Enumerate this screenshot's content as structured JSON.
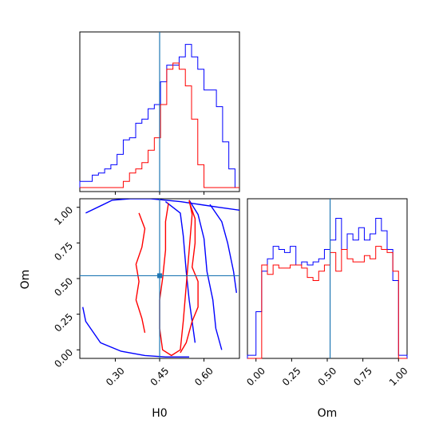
{
  "chart_data": {
    "type": "corner",
    "parameters": [
      "H0",
      "Om"
    ],
    "truth": {
      "H0": 0.45,
      "Om": 0.52
    },
    "colors": {
      "chain_a": "#0000ff",
      "chain_b": "#ff0000",
      "truth": "#1f77b4"
    },
    "hist_H0": {
      "xlim": [
        0.18,
        0.72
      ],
      "edges": [
        0.18,
        0.201,
        0.222,
        0.243,
        0.264,
        0.285,
        0.306,
        0.327,
        0.348,
        0.369,
        0.39,
        0.411,
        0.432,
        0.453,
        0.474,
        0.495,
        0.516,
        0.537,
        0.558,
        0.579,
        0.6,
        0.621,
        0.642,
        0.663,
        0.684,
        0.705,
        0.72
      ],
      "series": [
        {
          "name": "",
          "color": "#0000ff",
          "values": [
            3,
            3,
            6,
            7,
            9,
            11,
            16,
            23,
            24,
            31,
            33,
            38,
            40,
            51,
            59,
            59,
            63,
            69,
            63,
            57,
            47,
            47,
            39,
            22,
            9,
            0
          ]
        },
        {
          "name": "",
          "color": "#ff0000",
          "values": [
            0,
            0,
            0,
            0,
            0,
            0,
            0,
            3,
            7,
            9,
            12,
            18,
            24,
            40,
            57,
            60,
            57,
            49,
            33,
            11,
            0,
            0,
            0,
            0,
            0,
            0
          ]
        }
      ]
    },
    "hist_Om": {
      "xlim": [
        -0.06,
        1.06
      ],
      "edges": [
        -0.06,
        0.0,
        0.04,
        0.08,
        0.12,
        0.16,
        0.2,
        0.24,
        0.28,
        0.32,
        0.36,
        0.4,
        0.44,
        0.48,
        0.52,
        0.56,
        0.6,
        0.64,
        0.68,
        0.72,
        0.76,
        0.8,
        0.84,
        0.88,
        0.92,
        0.96,
        1.0,
        1.06
      ],
      "series": [
        {
          "name": "",
          "color": "#0000ff",
          "values": [
            1,
            15,
            28,
            32,
            36,
            35,
            34,
            36,
            30,
            31,
            30,
            31,
            32,
            35,
            38,
            45,
            35,
            40,
            38,
            42,
            38,
            40,
            45,
            41,
            35,
            25,
            1
          ]
        },
        {
          "name": "",
          "color": "#ff0000",
          "values": [
            0,
            0,
            30,
            27,
            30,
            29,
            29,
            30,
            30,
            29,
            26,
            25,
            28,
            30,
            34,
            28,
            35,
            32,
            31,
            31,
            33,
            32,
            36,
            35,
            34,
            28,
            0
          ]
        }
      ]
    },
    "scatter_panel": {
      "xlabel": "H0",
      "ylabel": "Om",
      "xlim": [
        0.18,
        0.72
      ],
      "ylim": [
        -0.06,
        1.06
      ],
      "xticks": [
        0.3,
        0.45,
        0.6
      ],
      "yticks": [
        0.0,
        0.25,
        0.5,
        0.75,
        1.0
      ],
      "xtick_labels": [
        "0.30",
        "0.45",
        "0.60"
      ],
      "ytick_labels": [
        "0.00",
        "0.25",
        "0.50",
        "0.75",
        "1.00"
      ]
    },
    "om_panel": {
      "xlabel": "Om",
      "xticks": [
        0.0,
        0.25,
        0.5,
        0.75,
        1.0
      ],
      "xtick_labels": [
        "0.00",
        "0.25",
        "0.50",
        "0.75",
        "1.00"
      ]
    },
    "contours": [
      {
        "color": "#0000ff",
        "points": [
          [
            0.2,
            0.96
          ],
          [
            0.29,
            1.05
          ],
          [
            0.35,
            1.06
          ],
          [
            0.42,
            1.06
          ],
          [
            0.52,
            1.04
          ],
          [
            0.65,
            1.0
          ],
          [
            0.72,
            0.98
          ]
        ]
      },
      {
        "color": "#0000ff",
        "points": [
          [
            0.19,
            0.3
          ],
          [
            0.2,
            0.2
          ],
          [
            0.25,
            0.05
          ],
          [
            0.32,
            -0.01
          ],
          [
            0.4,
            -0.04
          ],
          [
            0.47,
            -0.05
          ],
          [
            0.55,
            -0.05
          ]
        ]
      },
      {
        "color": "#0000ff",
        "points": [
          [
            0.47,
            1.04
          ],
          [
            0.52,
            0.96
          ],
          [
            0.53,
            0.8
          ],
          [
            0.54,
            0.55
          ],
          [
            0.55,
            0.35
          ],
          [
            0.56,
            0.2
          ],
          [
            0.57,
            0.05
          ]
        ]
      },
      {
        "color": "#0000ff",
        "points": [
          [
            0.55,
            1.05
          ],
          [
            0.58,
            0.95
          ],
          [
            0.6,
            0.78
          ],
          [
            0.61,
            0.55
          ],
          [
            0.63,
            0.35
          ],
          [
            0.64,
            0.15
          ],
          [
            0.66,
            0.0
          ]
        ]
      },
      {
        "color": "#0000ff",
        "points": [
          [
            0.62,
            1.02
          ],
          [
            0.66,
            0.9
          ],
          [
            0.68,
            0.75
          ],
          [
            0.7,
            0.55
          ],
          [
            0.71,
            0.4
          ]
        ]
      },
      {
        "color": "#ff0000",
        "points": [
          [
            0.48,
            1.03
          ],
          [
            0.47,
            0.9
          ],
          [
            0.47,
            0.7
          ],
          [
            0.46,
            0.5
          ],
          [
            0.45,
            0.35
          ],
          [
            0.45,
            0.15
          ],
          [
            0.46,
            0.0
          ],
          [
            0.49,
            -0.04
          ],
          [
            0.52,
            0.0
          ],
          [
            0.53,
            0.2
          ],
          [
            0.54,
            0.45
          ],
          [
            0.55,
            0.7
          ],
          [
            0.56,
            0.95
          ],
          [
            0.55,
            1.05
          ]
        ]
      },
      {
        "color": "#ff0000",
        "points": [
          [
            0.38,
            0.96
          ],
          [
            0.4,
            0.85
          ],
          [
            0.39,
            0.72
          ],
          [
            0.37,
            0.6
          ],
          [
            0.38,
            0.48
          ],
          [
            0.37,
            0.35
          ],
          [
            0.39,
            0.22
          ],
          [
            0.4,
            0.12
          ]
        ]
      },
      {
        "color": "#ff0000",
        "points": [
          [
            0.55,
            1.04
          ],
          [
            0.57,
            0.92
          ],
          [
            0.57,
            0.75
          ],
          [
            0.56,
            0.58
          ],
          [
            0.58,
            0.48
          ],
          [
            0.58,
            0.3
          ],
          [
            0.56,
            0.2
          ],
          [
            0.54,
            0.05
          ],
          [
            0.52,
            -0.02
          ]
        ]
      }
    ]
  }
}
